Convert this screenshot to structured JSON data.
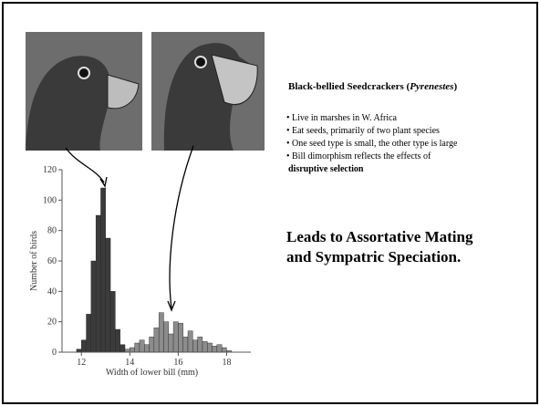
{
  "slide": {
    "title": [
      "Black-bellied Seedcrackers (",
      "Pyrenestes",
      ")"
    ],
    "bullets": [
      "• Live in marshes in W. Africa",
      "• Eat seeds, primarily of two plant species",
      "• One seed type is small, the other type is large",
      "• Bill dimorphism reflects the effects of"
    ],
    "bullet_bold": "disruptive selection",
    "conclusion": [
      "Leads to Assortative Mating",
      "and Sympatric Speciation."
    ]
  },
  "chart_data": {
    "type": "histogram",
    "xlabel": "Width of lower bill (mm)",
    "ylabel": "Number of birds",
    "xlim": [
      11.2,
      19
    ],
    "ylim": [
      0,
      120
    ],
    "xticks": [
      12,
      14,
      16,
      18
    ],
    "yticks": [
      0,
      20,
      40,
      60,
      80,
      100,
      120
    ],
    "series": [
      {
        "color": "#3b3b3b",
        "bins": [
          11.8,
          12.0,
          12.2,
          12.4,
          12.6,
          12.8,
          13.0,
          13.2,
          13.4,
          13.6,
          13.8
        ],
        "values": [
          2,
          8,
          25,
          60,
          90,
          108,
          75,
          40,
          15,
          5
        ]
      },
      {
        "color": "#8c8c8c",
        "bins": [
          13.8,
          14.0,
          14.2,
          14.4,
          14.6,
          14.8,
          15.0,
          15.2,
          15.4,
          15.6,
          15.8,
          16.0,
          16.2,
          16.4,
          16.6,
          16.8,
          17.0,
          17.2,
          17.4,
          17.6,
          17.8,
          18.0,
          18.2
        ],
        "values": [
          2,
          3,
          6,
          8,
          5,
          10,
          16,
          26,
          20,
          12,
          20,
          19,
          10,
          14,
          8,
          10,
          7,
          6,
          4,
          5,
          3,
          1
        ]
      }
    ]
  }
}
